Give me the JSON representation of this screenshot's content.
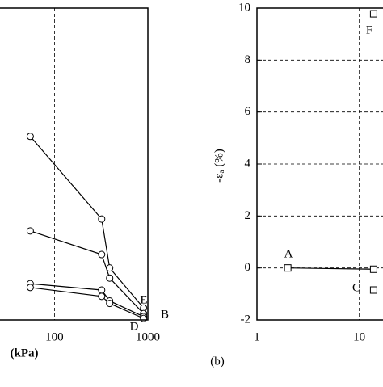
{
  "chart_data": [
    {
      "type": "line",
      "xlabel": "(kPa)",
      "xscale": "log",
      "xlim": [
        25.6,
        1000
      ],
      "ylim": [
        -2,
        10.3
      ],
      "xticks": [
        100,
        1000
      ],
      "marker": "circle",
      "grid": true,
      "series": [
        {
          "color": "#000000",
          "x": [
            55,
            320,
            390,
            900
          ],
          "values": [
            5.24,
            1.98,
            0.05,
            -1.53
          ]
        },
        {
          "color": "#000000",
          "x": [
            55,
            320,
            390,
            900
          ],
          "values": [
            1.51,
            0.58,
            -0.35,
            -1.75
          ]
        },
        {
          "color": "#000000",
          "x": [
            55,
            320,
            390,
            900
          ],
          "values": [
            -0.57,
            -0.82,
            -1.25,
            -1.87
          ]
        },
        {
          "color": "#000000",
          "x": [
            55,
            320,
            390,
            900
          ],
          "values": [
            -0.72,
            -1.07,
            -1.35,
            -1.94
          ]
        }
      ],
      "annotations": [
        "E",
        "B",
        "D"
      ]
    },
    {
      "type": "line",
      "title": "(b)",
      "ylabel": "-εₐ (%)",
      "xscale": "log",
      "xlim": [
        1,
        19
      ],
      "ylim": [
        -2,
        10
      ],
      "xticks": [
        1,
        10
      ],
      "yticks": [
        -2,
        0,
        2,
        4,
        6,
        8,
        10
      ],
      "marker": "square",
      "grid": true,
      "series": [
        {
          "color": "#000000",
          "x": [
            2,
            13.8
          ],
          "values": [
            0,
            -0.05
          ]
        },
        {
          "color": "#000000",
          "x": [
            13.8
          ],
          "values": [
            9.78
          ]
        },
        {
          "color": "#000000",
          "x": [
            13.8
          ],
          "values": [
            -0.85
          ]
        }
      ],
      "annotations": [
        "A",
        "F",
        "C"
      ]
    }
  ]
}
